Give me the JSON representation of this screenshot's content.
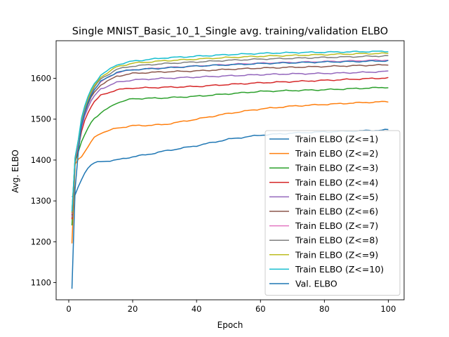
{
  "chart_data": {
    "type": "line",
    "title": "Single MNIST_Basic_10_1_Single avg. training/validation ELBO",
    "xlabel": "Epoch",
    "ylabel": "Avg. ELBO",
    "xlim": [
      -3.95,
      104.95
    ],
    "ylim": [
      1058,
      1692
    ],
    "xticks": [
      0,
      20,
      40,
      60,
      80,
      100
    ],
    "yticks": [
      1100,
      1200,
      1300,
      1400,
      1500,
      1600
    ],
    "grid": false,
    "legend": "lower-right",
    "x_start": 1,
    "x_end": 100,
    "series": [
      {
        "name": "Train ELBO (Z<=1)",
        "color": "#1f77b4",
        "keypoints": [
          [
            1,
            1310
          ],
          [
            2,
            1315
          ],
          [
            3,
            1335
          ],
          [
            4,
            1352
          ],
          [
            5,
            1368
          ],
          [
            6,
            1380
          ],
          [
            7,
            1388
          ],
          [
            8,
            1393
          ],
          [
            10,
            1396
          ],
          [
            15,
            1400
          ],
          [
            20,
            1408
          ],
          [
            25,
            1414
          ],
          [
            30,
            1422
          ],
          [
            40,
            1435
          ],
          [
            50,
            1451
          ],
          [
            60,
            1461
          ],
          [
            70,
            1466
          ],
          [
            80,
            1469
          ],
          [
            90,
            1471
          ],
          [
            100,
            1474
          ]
        ]
      },
      {
        "name": "Train ELBO (Z<=2)",
        "color": "#ff7f0e",
        "keypoints": [
          [
            1,
            1196
          ],
          [
            2,
            1390
          ],
          [
            3,
            1402
          ],
          [
            4,
            1408
          ],
          [
            5,
            1420
          ],
          [
            6,
            1432
          ],
          [
            7,
            1445
          ],
          [
            8,
            1456
          ],
          [
            10,
            1466
          ],
          [
            15,
            1478
          ],
          [
            20,
            1484
          ],
          [
            25,
            1485
          ],
          [
            30,
            1487
          ],
          [
            40,
            1500
          ],
          [
            50,
            1514
          ],
          [
            60,
            1525
          ],
          [
            70,
            1532
          ],
          [
            80,
            1536
          ],
          [
            90,
            1540
          ],
          [
            100,
            1543
          ]
        ]
      },
      {
        "name": "Train ELBO (Z<=3)",
        "color": "#2ca02c",
        "keypoints": [
          [
            1,
            1240
          ],
          [
            2,
            1395
          ],
          [
            3,
            1420
          ],
          [
            4,
            1445
          ],
          [
            5,
            1462
          ],
          [
            6,
            1478
          ],
          [
            7,
            1492
          ],
          [
            8,
            1502
          ],
          [
            10,
            1515
          ],
          [
            15,
            1540
          ],
          [
            20,
            1550
          ],
          [
            25,
            1551
          ],
          [
            30,
            1552
          ],
          [
            40,
            1556
          ],
          [
            50,
            1562
          ],
          [
            60,
            1568
          ],
          [
            70,
            1570
          ],
          [
            80,
            1572
          ],
          [
            90,
            1575
          ],
          [
            100,
            1578
          ]
        ]
      },
      {
        "name": "Train ELBO (Z<=4)",
        "color": "#d62728",
        "keypoints": [
          [
            1,
            1255
          ],
          [
            2,
            1398
          ],
          [
            3,
            1430
          ],
          [
            4,
            1470
          ],
          [
            5,
            1497
          ],
          [
            6,
            1515
          ],
          [
            7,
            1530
          ],
          [
            8,
            1543
          ],
          [
            10,
            1558
          ],
          [
            15,
            1572
          ],
          [
            20,
            1576
          ],
          [
            30,
            1578
          ],
          [
            40,
            1580
          ],
          [
            50,
            1585
          ],
          [
            60,
            1589
          ],
          [
            70,
            1592
          ],
          [
            80,
            1595
          ],
          [
            90,
            1598
          ],
          [
            100,
            1601
          ]
        ]
      },
      {
        "name": "Train ELBO (Z<=5)",
        "color": "#9467bd",
        "keypoints": [
          [
            1,
            1260
          ],
          [
            2,
            1400
          ],
          [
            3,
            1435
          ],
          [
            4,
            1480
          ],
          [
            5,
            1508
          ],
          [
            6,
            1528
          ],
          [
            7,
            1545
          ],
          [
            8,
            1557
          ],
          [
            10,
            1574
          ],
          [
            15,
            1590
          ],
          [
            20,
            1596
          ],
          [
            30,
            1600
          ],
          [
            40,
            1603
          ],
          [
            50,
            1606
          ],
          [
            60,
            1609
          ],
          [
            70,
            1611
          ],
          [
            80,
            1612
          ],
          [
            90,
            1614
          ],
          [
            100,
            1617
          ]
        ]
      },
      {
        "name": "Train ELBO (Z<=6)",
        "color": "#8c564b",
        "keypoints": [
          [
            1,
            1265
          ],
          [
            2,
            1402
          ],
          [
            3,
            1440
          ],
          [
            4,
            1488
          ],
          [
            5,
            1515
          ],
          [
            6,
            1536
          ],
          [
            7,
            1554
          ],
          [
            8,
            1566
          ],
          [
            10,
            1584
          ],
          [
            15,
            1605
          ],
          [
            20,
            1612
          ],
          [
            30,
            1616
          ],
          [
            40,
            1618
          ],
          [
            50,
            1622
          ],
          [
            60,
            1625
          ],
          [
            70,
            1627
          ],
          [
            80,
            1629
          ],
          [
            90,
            1631
          ],
          [
            100,
            1633
          ]
        ]
      },
      {
        "name": "Train ELBO (Z<=7)",
        "color": "#e377c2",
        "keypoints": [
          [
            1,
            1268
          ],
          [
            2,
            1404
          ],
          [
            3,
            1443
          ],
          [
            4,
            1492
          ],
          [
            5,
            1520
          ],
          [
            6,
            1541
          ],
          [
            7,
            1559
          ],
          [
            8,
            1572
          ],
          [
            10,
            1591
          ],
          [
            15,
            1614
          ],
          [
            20,
            1621
          ],
          [
            30,
            1626
          ],
          [
            40,
            1630
          ],
          [
            50,
            1634
          ],
          [
            60,
            1637
          ],
          [
            70,
            1639
          ],
          [
            80,
            1641
          ],
          [
            90,
            1643
          ],
          [
            100,
            1645
          ]
        ]
      },
      {
        "name": "Train ELBO (Z<=8)",
        "color": "#7f7f7f",
        "keypoints": [
          [
            1,
            1270
          ],
          [
            2,
            1405
          ],
          [
            3,
            1446
          ],
          [
            4,
            1496
          ],
          [
            5,
            1524
          ],
          [
            6,
            1546
          ],
          [
            7,
            1564
          ],
          [
            8,
            1578
          ],
          [
            10,
            1598
          ],
          [
            15,
            1622
          ],
          [
            20,
            1630
          ],
          [
            30,
            1636
          ],
          [
            40,
            1640
          ],
          [
            50,
            1644
          ],
          [
            60,
            1647
          ],
          [
            70,
            1649
          ],
          [
            80,
            1651
          ],
          [
            90,
            1653
          ],
          [
            100,
            1655
          ]
        ]
      },
      {
        "name": "Train ELBO (Z<=9)",
        "color": "#bcbd22",
        "keypoints": [
          [
            1,
            1272
          ],
          [
            2,
            1406
          ],
          [
            3,
            1448
          ],
          [
            4,
            1500
          ],
          [
            5,
            1528
          ],
          [
            6,
            1550
          ],
          [
            7,
            1568
          ],
          [
            8,
            1582
          ],
          [
            10,
            1603
          ],
          [
            15,
            1628
          ],
          [
            20,
            1637
          ],
          [
            30,
            1643
          ],
          [
            40,
            1647
          ],
          [
            50,
            1651
          ],
          [
            60,
            1654
          ],
          [
            70,
            1656
          ],
          [
            80,
            1658
          ],
          [
            90,
            1660
          ],
          [
            100,
            1661
          ]
        ]
      },
      {
        "name": "Train ELBO (Z<=10)",
        "color": "#17becf",
        "keypoints": [
          [
            1,
            1274
          ],
          [
            2,
            1407
          ],
          [
            3,
            1450
          ],
          [
            4,
            1503
          ],
          [
            5,
            1532
          ],
          [
            6,
            1555
          ],
          [
            7,
            1573
          ],
          [
            8,
            1587
          ],
          [
            10,
            1608
          ],
          [
            15,
            1633
          ],
          [
            20,
            1642
          ],
          [
            30,
            1650
          ],
          [
            40,
            1654
          ],
          [
            50,
            1658
          ],
          [
            60,
            1661
          ],
          [
            70,
            1663
          ],
          [
            80,
            1664
          ],
          [
            90,
            1665
          ],
          [
            100,
            1666
          ]
        ]
      },
      {
        "name": "Val. ELBO",
        "color": "#1f77b4",
        "keypoints": [
          [
            1,
            1085
          ],
          [
            2,
            1330
          ],
          [
            3,
            1420
          ],
          [
            4,
            1485
          ],
          [
            5,
            1515
          ],
          [
            6,
            1540
          ],
          [
            7,
            1558
          ],
          [
            8,
            1572
          ],
          [
            10,
            1592
          ],
          [
            15,
            1615
          ],
          [
            20,
            1621
          ],
          [
            30,
            1625
          ],
          [
            40,
            1630
          ],
          [
            50,
            1633
          ],
          [
            60,
            1636
          ],
          [
            70,
            1638
          ],
          [
            80,
            1640
          ],
          [
            90,
            1641
          ],
          [
            100,
            1643
          ]
        ]
      }
    ]
  }
}
